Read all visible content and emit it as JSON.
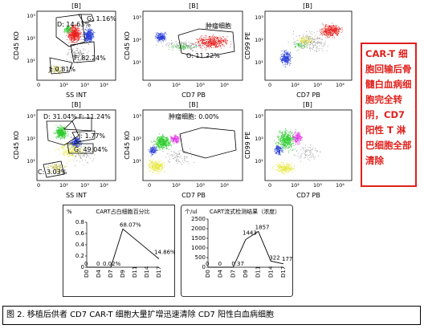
{
  "flow_panels": [
    {
      "title": "[B]",
      "ylabel": "CD45 KO",
      "xlabel": "SS INT",
      "gates": [
        {
          "name": "D",
          "value": "14.63%"
        },
        {
          "name": "G",
          "value": "1.16%"
        },
        {
          "name": "F",
          "value": "82.24%"
        },
        {
          "name": "J",
          "value": "0.81%"
        }
      ]
    },
    {
      "title": "[B]",
      "ylabel": "CD45 KO",
      "xlabel": "CD7 PB",
      "tumor_label": "肿瘤细胞",
      "gates": [
        {
          "name": "O",
          "value": "11.22%"
        }
      ]
    },
    {
      "title": "[B]",
      "ylabel": "CD99 PE",
      "xlabel": "CD7 PB",
      "gates": []
    },
    {
      "title": "[B]",
      "ylabel": "CD45 KO",
      "xlabel": "SS INT",
      "gates": [
        {
          "name": "D",
          "value": "31.04%"
        },
        {
          "name": "F",
          "value": "11.24%"
        },
        {
          "name": "J",
          "value": "1.77%"
        },
        {
          "name": "G",
          "value": "49.04%"
        },
        {
          "name": "C",
          "value": "3.03%"
        }
      ]
    },
    {
      "title": "[B]",
      "ylabel": "CD45 KO",
      "xlabel": "CD7 PB",
      "tumor_label": "肿瘤细胞: 0.00%",
      "gates": []
    },
    {
      "title": "[B]",
      "ylabel": "CD99 PE",
      "xlabel": "CD7 PB",
      "gates": []
    }
  ],
  "note_text": "CAR-T 细胞回输后骨髓白血病细胞完全转阴，CD7 阳性 T 淋巴细胞全部清除",
  "chart_data": [
    {
      "type": "line",
      "title": "CART占白细胞百分比",
      "unit_label": "%",
      "categories": [
        "D0",
        "D4",
        "D7",
        "D9",
        "D11",
        "D14",
        "D17"
      ],
      "values": [
        0,
        0,
        0.02,
        68.07,
        null,
        null,
        14.86
      ],
      "yticks": [
        0,
        0.2,
        0.4,
        0.6,
        0.8
      ],
      "data_labels": [
        "0",
        "0",
        "0.02%",
        "68.07%",
        "",
        "",
        "14.86%"
      ]
    },
    {
      "type": "line",
      "title": "CART流式检测结果（浓度）",
      "unit_label": "个/ul",
      "categories": [
        "D0",
        "D4",
        "D7",
        "D9",
        "D11",
        "D14",
        "D17"
      ],
      "values": [
        0,
        0,
        0.37,
        1443,
        1857,
        322,
        177
      ],
      "yticks": [
        0,
        500,
        1000,
        1500,
        2000,
        2500
      ],
      "data_labels": [
        "0",
        "0",
        "0.37",
        "1443",
        "1857",
        "322",
        "177"
      ]
    }
  ],
  "caption": "图 2. 移植后供者 CD7 CAR-T 细胞大量扩增迅速清除 CD7 阳性白血病细胞",
  "colors": {
    "red_gate": "#e8201c",
    "blue": "#2b3fd8",
    "green": "#2ecc2e",
    "yellow": "#e7e63a",
    "magenta": "#e233e6",
    "gray": "#9a9a9a",
    "olive": "#b8b43a",
    "note_red": "#e0201b"
  }
}
